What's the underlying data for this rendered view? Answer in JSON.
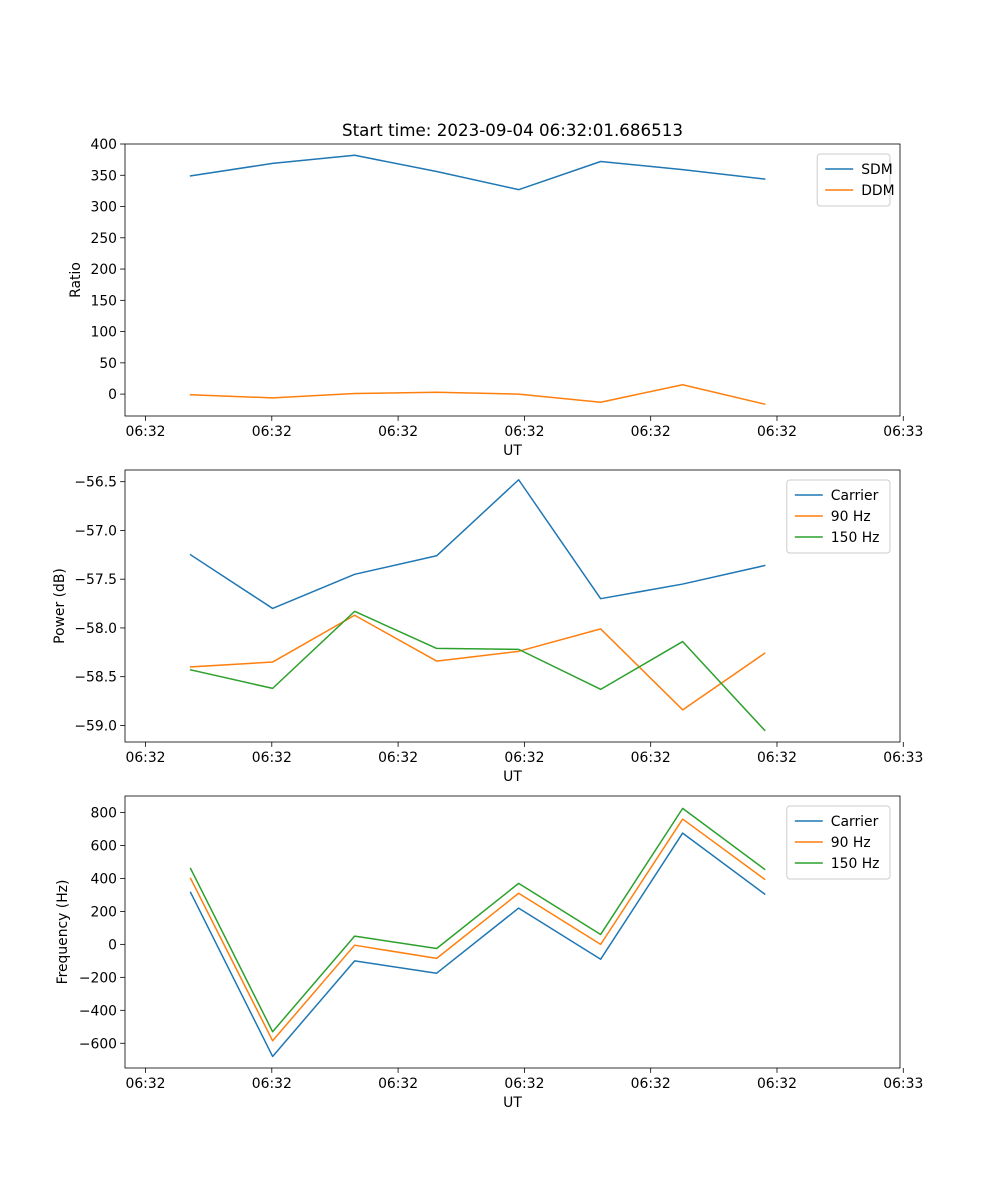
{
  "figure": {
    "title": "Start time: 2023-09-04 06:32:01.686513"
  },
  "chart_data": [
    {
      "type": "line",
      "title": "Start time: 2023-09-04 06:32:01.686513",
      "xlabel": "UT",
      "ylabel": "Ratio",
      "x": [
        1,
        2,
        3,
        4,
        5,
        6,
        7,
        8
      ],
      "xlim": [
        0.2,
        9.65
      ],
      "x_ticks": [
        0.45,
        1.99,
        3.53,
        5.07,
        6.61,
        8.15,
        9.69
      ],
      "x_tick_labels": [
        "06:32",
        "06:32",
        "06:32",
        "06:32",
        "06:32",
        "06:32",
        "06:33"
      ],
      "ylim": [
        -35,
        400
      ],
      "y_ticks": [
        0,
        50,
        100,
        150,
        200,
        250,
        300,
        350,
        400
      ],
      "y_tick_labels": [
        "0",
        "50",
        "100",
        "150",
        "200",
        "250",
        "300",
        "350",
        "400"
      ],
      "grid": false,
      "legend_position": "top-right",
      "series": [
        {
          "name": "SDM",
          "color": "#1f77b4",
          "values": [
            349,
            369,
            382,
            356,
            327,
            372,
            359,
            344
          ]
        },
        {
          "name": "DDM",
          "color": "#ff7f0e",
          "values": [
            -1,
            -6,
            1,
            3,
            0,
            -13,
            15,
            -16
          ]
        }
      ]
    },
    {
      "type": "line",
      "xlabel": "UT",
      "ylabel": "Power (dB)",
      "x": [
        1,
        2,
        3,
        4,
        5,
        6,
        7,
        8
      ],
      "xlim": [
        0.2,
        9.65
      ],
      "x_ticks": [
        0.45,
        1.99,
        3.53,
        5.07,
        6.61,
        8.15,
        9.69
      ],
      "x_tick_labels": [
        "06:32",
        "06:32",
        "06:32",
        "06:32",
        "06:32",
        "06:32",
        "06:33"
      ],
      "ylim": [
        -59.17,
        -56.38
      ],
      "y_ticks": [
        -56.5,
        -57.0,
        -57.5,
        -58.0,
        -58.5,
        -59.0
      ],
      "y_tick_labels": [
        "−56.5",
        "−57.0",
        "−57.5",
        "−58.0",
        "−58.5",
        "−59.0"
      ],
      "grid": false,
      "legend_position": "top-right",
      "series": [
        {
          "name": "Carrier",
          "color": "#1f77b4",
          "values": [
            -57.25,
            -57.8,
            -57.45,
            -57.26,
            -56.48,
            -57.7,
            -57.55,
            -57.36
          ]
        },
        {
          "name": "90 Hz",
          "color": "#ff7f0e",
          "values": [
            -58.4,
            -58.35,
            -57.87,
            -58.34,
            -58.24,
            -58.01,
            -58.84,
            -58.26
          ]
        },
        {
          "name": "150 Hz",
          "color": "#2ca02c",
          "values": [
            -58.43,
            -58.62,
            -57.83,
            -58.21,
            -58.22,
            -58.63,
            -58.14,
            -59.05
          ]
        }
      ]
    },
    {
      "type": "line",
      "xlabel": "UT",
      "ylabel": "Frequency (Hz)",
      "x": [
        1,
        2,
        3,
        4,
        5,
        6,
        7,
        8
      ],
      "xlim": [
        0.2,
        9.65
      ],
      "x_ticks": [
        0.45,
        1.99,
        3.53,
        5.07,
        6.61,
        8.15,
        9.69
      ],
      "x_tick_labels": [
        "06:32",
        "06:32",
        "06:32",
        "06:32",
        "06:32",
        "06:32",
        "06:33"
      ],
      "ylim": [
        -750,
        900
      ],
      "y_ticks": [
        800,
        600,
        400,
        200,
        0,
        -200,
        -400,
        -600
      ],
      "y_tick_labels": [
        "800",
        "600",
        "400",
        "200",
        "0",
        "−200",
        "−400",
        "−600"
      ],
      "grid": false,
      "legend_position": "top-right",
      "series": [
        {
          "name": "Carrier",
          "color": "#1f77b4",
          "values": [
            315,
            -680,
            -100,
            -175,
            220,
            -90,
            675,
            305
          ]
        },
        {
          "name": "90 Hz",
          "color": "#ff7f0e",
          "values": [
            400,
            -585,
            -5,
            -85,
            310,
            0,
            760,
            395
          ]
        },
        {
          "name": "150 Hz",
          "color": "#2ca02c",
          "values": [
            460,
            -530,
            50,
            -25,
            370,
            60,
            825,
            455
          ]
        }
      ]
    }
  ]
}
